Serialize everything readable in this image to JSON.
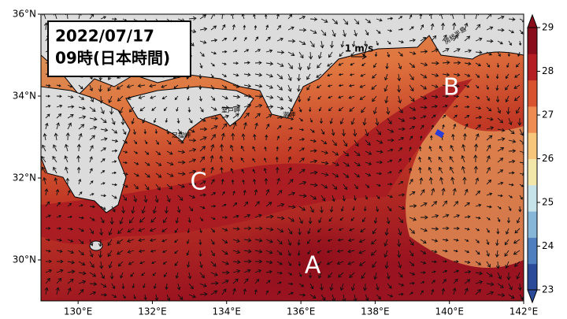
{
  "map": {
    "title_lines": [
      "2022/07/17",
      "09時(日本時間)"
    ],
    "xlim": [
      129,
      142
    ],
    "ylim": [
      29,
      36
    ],
    "xticks": [
      {
        "value": 130,
        "label": "130°E"
      },
      {
        "value": 132,
        "label": "132°E"
      },
      {
        "value": 134,
        "label": "134°E"
      },
      {
        "value": 136,
        "label": "136°E"
      },
      {
        "value": 138,
        "label": "138°E"
      },
      {
        "value": 140,
        "label": "140°E"
      },
      {
        "value": 142,
        "label": "142°E"
      }
    ],
    "yticks": [
      {
        "value": 30,
        "label": "30°N"
      },
      {
        "value": 32,
        "label": "32°N"
      },
      {
        "value": 34,
        "label": "34°N"
      },
      {
        "value": 36,
        "label": "36°N"
      }
    ],
    "colorbar": {
      "lim": [
        23,
        29
      ],
      "ticks": [
        23,
        24,
        25,
        26,
        27,
        28,
        29
      ],
      "colors": [
        "#2c4a9a",
        "#4f7fbf",
        "#86b6d8",
        "#c7e3ea",
        "#f2e7a8",
        "#f8c67a",
        "#ef8c52",
        "#d9532f",
        "#b51f24",
        "#8a0d1c"
      ]
    },
    "scale_label": "1 m/s",
    "eddy_labels": [
      "A",
      "B",
      "C"
    ],
    "place_names": [
      "室戸岬",
      "足摺岬",
      "潮岬",
      "房総半島"
    ]
  }
}
